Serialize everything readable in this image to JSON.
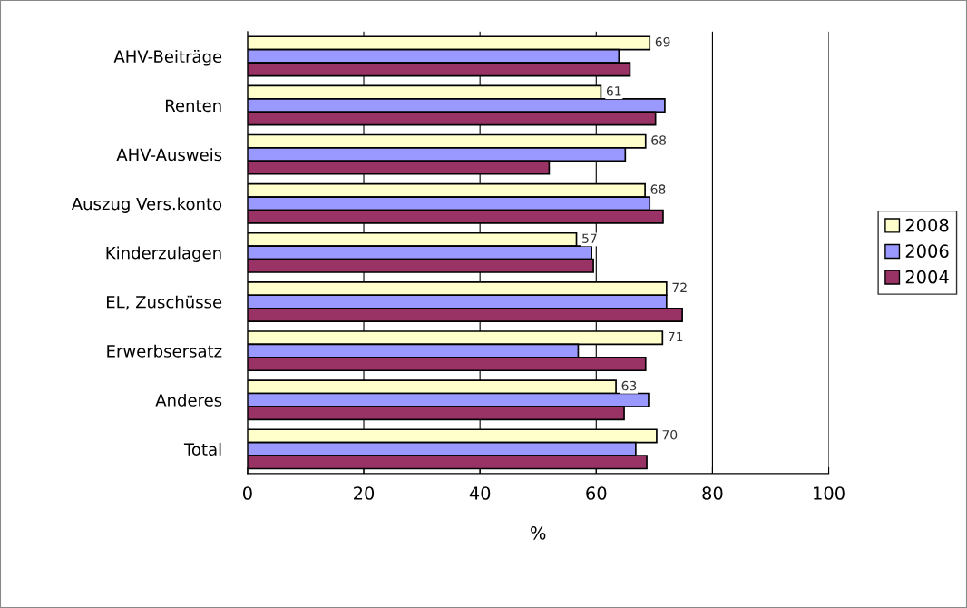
{
  "chart_data": {
    "type": "bar",
    "orientation": "horizontal",
    "xlabel": "%",
    "categories": [
      "AHV-Beiträge",
      "Renten",
      "AHV-Ausweis",
      "Auszug Vers.konto",
      "Kinderzulagen",
      "EL, Zuschüsse",
      "Erwerbsersatz",
      "Anderes",
      "Total"
    ],
    "series": [
      {
        "name": "2008",
        "color": "#ffffcc",
        "values": [
          69.2,
          60.8,
          68.5,
          68.4,
          56.6,
          72.1,
          71.4,
          63.4,
          70.4
        ],
        "value_labels": [
          "69",
          "61",
          "68",
          "68",
          "57",
          "72",
          "71",
          "63",
          "70"
        ]
      },
      {
        "name": "2006",
        "color": "#9999ff",
        "values": [
          63.9,
          71.8,
          65.0,
          69.2,
          59.2,
          72.1,
          56.9,
          69.0,
          66.8
        ]
      },
      {
        "name": "2004",
        "color": "#993366",
        "values": [
          65.8,
          70.2,
          51.9,
          71.5,
          59.5,
          74.8,
          68.5,
          64.8,
          68.7
        ]
      }
    ],
    "xlim": [
      0,
      100
    ],
    "xticks": [
      0,
      20,
      40,
      60,
      80,
      100
    ],
    "grid": "x",
    "legend": "right"
  }
}
